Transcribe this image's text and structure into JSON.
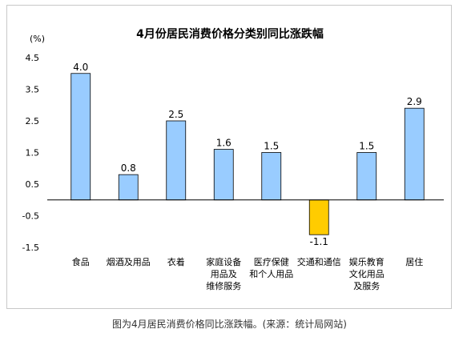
{
  "chart_data": {
    "type": "bar",
    "title": "4月份居民消费价格分类别同比涨跌幅",
    "ylabel": "(%)",
    "ylim": [
      -1.5,
      4.5
    ],
    "yticks": [
      4.5,
      3.5,
      2.5,
      1.5,
      0.5,
      -0.5,
      -1.5
    ],
    "ytick_labels": [
      "4.5",
      "3.5",
      "2.5",
      "1.5",
      "0.5",
      "-0.5",
      "-1.5"
    ],
    "categories": [
      [
        "食品"
      ],
      [
        "烟酒及用品"
      ],
      [
        "衣着"
      ],
      [
        "家庭设备",
        "用品及",
        "维修服务"
      ],
      [
        "医疗保健",
        "和个人用品"
      ],
      [
        "交通和通信"
      ],
      [
        "娱乐教育",
        "文化用品",
        "及服务"
      ],
      [
        "居住"
      ]
    ],
    "values": [
      4.0,
      0.8,
      2.5,
      1.6,
      1.5,
      -1.1,
      1.5,
      2.9
    ],
    "value_labels": [
      "4.0",
      "0.8",
      "2.5",
      "1.6",
      "1.5",
      "-1.1",
      "1.5",
      "2.9"
    ],
    "colors": {
      "positive": "#99ccff",
      "negative": "#ffcc00",
      "bar_stroke": "#000000",
      "axis": "#000000"
    },
    "grid": false,
    "legend": false
  },
  "caption": "图为4月居民消费价格同比涨跌幅。(来源：统计局网站)"
}
